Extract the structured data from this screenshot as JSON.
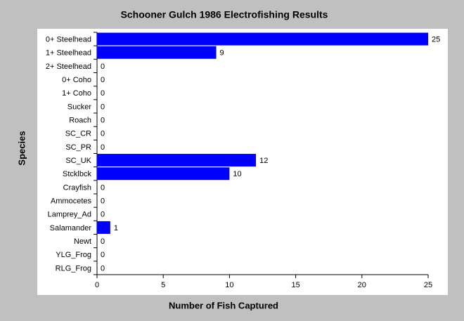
{
  "chart_data": {
    "type": "bar",
    "orientation": "horizontal",
    "title": "Schooner Gulch 1986 Electrofishing Results",
    "x_label": "Number of Fish Captured",
    "y_label": "Species",
    "categories": [
      "0+ Steelhead",
      "1+ Steelhead",
      "2+ Steelhead",
      "0+ Coho",
      "1+ Coho",
      "Sucker",
      "Roach",
      "SC_CR",
      "SC_PR",
      "SC_UK",
      "Stcklbck",
      "Crayfish",
      "Ammocetes",
      "Lamprey_Ad",
      "Salamander",
      "Newt",
      "YLG_Frog",
      "RLG_Frog"
    ],
    "values": [
      25,
      9,
      0,
      0,
      0,
      0,
      0,
      0,
      0,
      12,
      10,
      0,
      0,
      0,
      1,
      0,
      0,
      0
    ],
    "color": "#0000ff",
    "xlim": [
      0,
      25
    ],
    "xticks": [
      0,
      5,
      10,
      15,
      20,
      25
    ]
  }
}
